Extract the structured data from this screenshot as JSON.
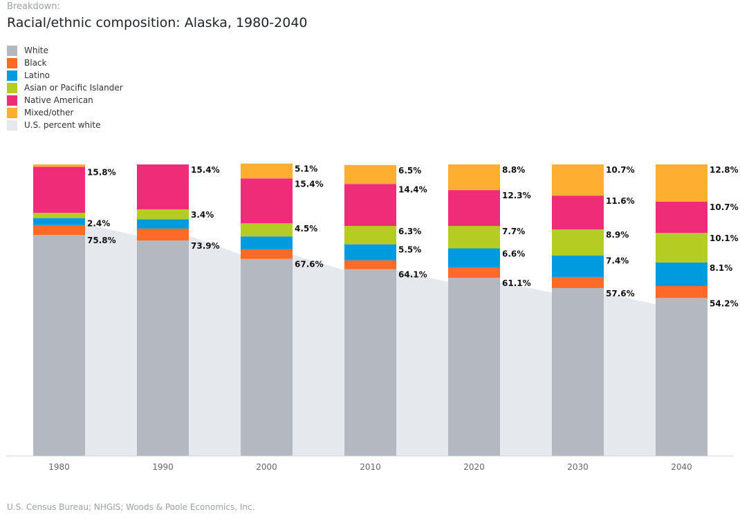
{
  "header": {
    "eyebrow": "Breakdown:",
    "title": "Racial/ethnic composition: Alaska, 1980-2040"
  },
  "legend": [
    {
      "label": "White",
      "color": "#b4b8bf"
    },
    {
      "label": "Black",
      "color": "#ff6a26"
    },
    {
      "label": "Latino",
      "color": "#009bde"
    },
    {
      "label": "Asian or Pacific Islander",
      "color": "#b5cd22"
    },
    {
      "label": "Native American",
      "color": "#ef2c77"
    },
    {
      "label": "Mixed/other",
      "color": "#fdb02f"
    },
    {
      "label": "U.S. percent white",
      "color": "#e5e9ed"
    }
  ],
  "chart_data": {
    "type": "bar",
    "stacked": true,
    "categories": [
      "1980",
      "1990",
      "2000",
      "2010",
      "2020",
      "2030",
      "2040"
    ],
    "ylim": [
      0,
      100
    ],
    "series": [
      {
        "name": "White",
        "color": "#b4b8bf",
        "values": [
          75.8,
          73.9,
          67.6,
          64.1,
          61.1,
          57.6,
          54.2
        ],
        "labels": [
          "75.8%",
          "73.9%",
          "67.6%",
          "64.1%",
          "61.1%",
          "57.6%",
          "54.2%"
        ]
      },
      {
        "name": "Black",
        "color": "#ff6a26",
        "values": [
          3.4,
          4.1,
          3.3,
          3.0,
          3.5,
          3.8,
          4.1
        ],
        "labels": [
          "",
          "",
          "",
          "",
          "",
          "",
          ""
        ]
      },
      {
        "name": "Latino",
        "color": "#009bde",
        "values": [
          2.4,
          3.2,
          4.4,
          5.5,
          6.6,
          7.4,
          8.1
        ],
        "labels": [
          "2.4%",
          "",
          "",
          "5.5%",
          "6.6%",
          "7.4%",
          "8.1%"
        ]
      },
      {
        "name": "Asian or Pacific Islander",
        "color": "#b5cd22",
        "values": [
          1.8,
          3.4,
          4.5,
          6.3,
          7.7,
          8.9,
          10.1
        ],
        "labels": [
          "",
          "3.4%",
          "4.5%",
          "6.3%",
          "7.7%",
          "8.9%",
          "10.1%"
        ]
      },
      {
        "name": "Native American",
        "color": "#ef2c77",
        "values": [
          15.8,
          15.4,
          15.4,
          14.4,
          12.3,
          11.6,
          10.7
        ],
        "labels": [
          "15.8%",
          "15.4%",
          "15.4%",
          "14.4%",
          "12.3%",
          "11.6%",
          "10.7%"
        ]
      },
      {
        "name": "Mixed/other",
        "color": "#fdb02f",
        "values": [
          0.8,
          0.0,
          5.1,
          6.5,
          8.8,
          10.7,
          12.8
        ],
        "labels": [
          "",
          "",
          "5.1%",
          "6.5%",
          "8.8%",
          "10.7%",
          "12.8%"
        ]
      }
    ],
    "background_area": {
      "name": "U.S. percent white",
      "color": "#e5e9ed",
      "values": [
        79.6,
        75.6,
        69.1,
        63.7,
        59.7,
        56.0,
        52.0
      ]
    }
  },
  "footer": {
    "source": "U.S. Census Bureau; NHGIS; Woods & Poole Economics, Inc."
  }
}
